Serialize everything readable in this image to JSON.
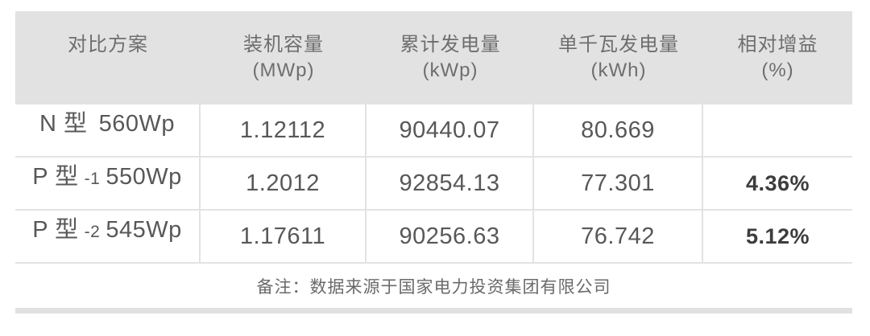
{
  "table": {
    "headers": [
      {
        "line1": "对比方案",
        "line2": ""
      },
      {
        "line1": "装机容量",
        "line2": "(MWp)"
      },
      {
        "line1": "累计发电量",
        "line2": "(kWp)"
      },
      {
        "line1": "单千瓦发电量",
        "line2": "(kWh)"
      },
      {
        "line1": "相对增益",
        "line2": "(%)"
      }
    ],
    "rows": [
      {
        "scheme_main": "N 型",
        "scheme_sub": "",
        "scheme_watt": "560Wp",
        "capacity": "1.12112",
        "cumulative": "90440.07",
        "per_kw": "80.669",
        "gain": ""
      },
      {
        "scheme_main": "P 型",
        "scheme_sub": "-1",
        "scheme_watt": "550Wp",
        "capacity": "1.2012",
        "cumulative": "92854.13",
        "per_kw": "77.301",
        "gain": "4.36%"
      },
      {
        "scheme_main": "P 型",
        "scheme_sub": "-2",
        "scheme_watt": "545Wp",
        "capacity": "1.17611",
        "cumulative": "90256.63",
        "per_kw": "76.742",
        "gain": "5.12%"
      }
    ],
    "note": "备注：数据来源于国家电力投资集团有限公司"
  },
  "colors": {
    "header_bg": "#e2e2e2",
    "border": "#e3e3e3",
    "header_text": "#6e6e6e",
    "body_text": "#58585a",
    "gain_text": "#3d3d3f",
    "note_text": "#6a6a6a"
  },
  "chart_data": {
    "type": "table",
    "title": "",
    "columns": [
      "对比方案",
      "装机容量 (MWp)",
      "累计发电量 (kWp)",
      "单千瓦发电量 (kWh)",
      "相对增益 (%)"
    ],
    "rows": [
      [
        "N 型 560Wp",
        1.12112,
        90440.07,
        80.669,
        ""
      ],
      [
        "P 型-1 550Wp",
        1.2012,
        92854.13,
        77.301,
        "4.36%"
      ],
      [
        "P 型-2 545Wp",
        1.17611,
        90256.63,
        76.742,
        "5.12%"
      ]
    ],
    "note": "备注：数据来源于国家电力投资集团有限公司"
  }
}
